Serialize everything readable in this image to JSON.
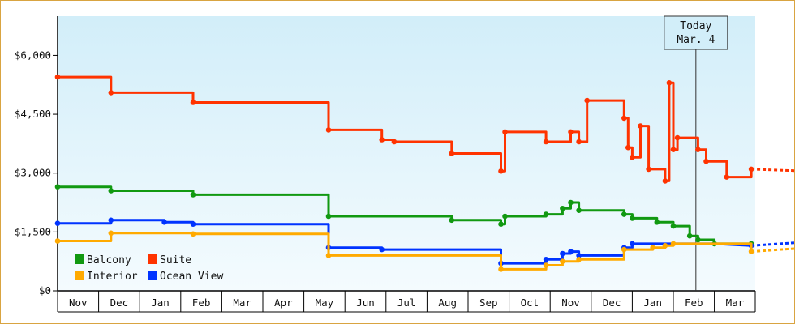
{
  "chart_data": {
    "type": "line",
    "title": "",
    "xlabel": "",
    "ylabel": "",
    "months": [
      "Nov",
      "Dec",
      "Jan",
      "Feb",
      "Mar",
      "Apr",
      "May",
      "Jun",
      "Jul",
      "Aug",
      "Sep",
      "Oct",
      "Nov",
      "Dec",
      "Jan",
      "Feb",
      "Mar"
    ],
    "ylim": [
      0,
      7000
    ],
    "yticks": [
      {
        "value": 0,
        "label": "$0"
      },
      {
        "value": 1500,
        "label": "$1,500"
      },
      {
        "value": 3000,
        "label": "$3,000"
      },
      {
        "value": 4500,
        "label": "$4,500"
      },
      {
        "value": 6000,
        "label": "$6,000"
      }
    ],
    "today": {
      "line1": "Today",
      "line2": "Mar. 4",
      "x": 15.55
    },
    "x_unit_note": "x values are month-axis positions (0 = start of Nov, 1 = start of Dec, ...)",
    "series": [
      {
        "name": "Suite",
        "color": "#ff3300",
        "points": [
          [
            0,
            5450
          ],
          [
            1.3,
            5450
          ],
          [
            1.3,
            5050
          ],
          [
            3.3,
            5050
          ],
          [
            3.3,
            4800
          ],
          [
            6.6,
            4800
          ],
          [
            6.6,
            4100
          ],
          [
            6.8,
            4100
          ],
          [
            7.9,
            4100
          ],
          [
            7.9,
            3850
          ],
          [
            8.2,
            3850
          ],
          [
            8.2,
            3800
          ],
          [
            9.6,
            3800
          ],
          [
            9.6,
            3500
          ],
          [
            10.8,
            3500
          ],
          [
            10.8,
            3050
          ],
          [
            10.9,
            3050
          ],
          [
            10.9,
            4050
          ],
          [
            11.9,
            4050
          ],
          [
            11.9,
            3800
          ],
          [
            12.5,
            3800
          ],
          [
            12.5,
            4050
          ],
          [
            12.7,
            4050
          ],
          [
            12.7,
            3800
          ],
          [
            12.9,
            3800
          ],
          [
            12.9,
            4850
          ],
          [
            13.8,
            4850
          ],
          [
            13.8,
            4400
          ],
          [
            13.9,
            4400
          ],
          [
            13.9,
            3650
          ],
          [
            14.0,
            3650
          ],
          [
            14.0,
            3400
          ],
          [
            14.2,
            3400
          ],
          [
            14.2,
            4200
          ],
          [
            14.4,
            4200
          ],
          [
            14.4,
            3100
          ],
          [
            14.8,
            3100
          ],
          [
            14.8,
            2800
          ],
          [
            14.9,
            2800
          ],
          [
            14.9,
            5300
          ],
          [
            15.0,
            5300
          ],
          [
            15.0,
            3600
          ],
          [
            15.1,
            3600
          ],
          [
            15.1,
            3900
          ],
          [
            15.6,
            3900
          ],
          [
            15.6,
            3600
          ],
          [
            15.8,
            3600
          ],
          [
            15.8,
            3300
          ],
          [
            16.3,
            3300
          ],
          [
            16.3,
            2900
          ],
          [
            16.9,
            2900
          ],
          [
            16.9,
            3100
          ]
        ],
        "forecast": [
          [
            16.9,
            3100
          ],
          [
            18.3,
            3050
          ]
        ]
      },
      {
        "name": "Balcony",
        "color": "#119911",
        "points": [
          [
            0,
            2650
          ],
          [
            1.3,
            2650
          ],
          [
            1.3,
            2550
          ],
          [
            3.3,
            2550
          ],
          [
            3.3,
            2450
          ],
          [
            6.6,
            2450
          ],
          [
            6.6,
            1900
          ],
          [
            6.8,
            1900
          ],
          [
            9.6,
            1900
          ],
          [
            9.6,
            1800
          ],
          [
            10.8,
            1800
          ],
          [
            10.8,
            1700
          ],
          [
            10.9,
            1700
          ],
          [
            10.9,
            1900
          ],
          [
            11.9,
            1900
          ],
          [
            11.9,
            1950
          ],
          [
            12.3,
            1950
          ],
          [
            12.3,
            2100
          ],
          [
            12.5,
            2100
          ],
          [
            12.5,
            2250
          ],
          [
            12.7,
            2250
          ],
          [
            12.7,
            2050
          ],
          [
            13.8,
            2050
          ],
          [
            13.8,
            1950
          ],
          [
            14.0,
            1950
          ],
          [
            14.0,
            1850
          ],
          [
            14.6,
            1850
          ],
          [
            14.6,
            1750
          ],
          [
            15.0,
            1750
          ],
          [
            15.0,
            1650
          ],
          [
            15.4,
            1650
          ],
          [
            15.4,
            1400
          ],
          [
            15.6,
            1400
          ],
          [
            15.6,
            1300
          ],
          [
            16.0,
            1300
          ],
          [
            16.0,
            1200
          ],
          [
            16.9,
            1200
          ]
        ],
        "forecast": []
      },
      {
        "name": "Ocean View",
        "color": "#0033ff",
        "points": [
          [
            0,
            1720
          ],
          [
            1.3,
            1720
          ],
          [
            1.3,
            1800
          ],
          [
            2.6,
            1800
          ],
          [
            2.6,
            1750
          ],
          [
            3.3,
            1750
          ],
          [
            3.3,
            1700
          ],
          [
            6.6,
            1700
          ],
          [
            6.6,
            1100
          ],
          [
            6.8,
            1100
          ],
          [
            7.9,
            1100
          ],
          [
            7.9,
            1050
          ],
          [
            9.6,
            1050
          ],
          [
            10.8,
            1050
          ],
          [
            10.8,
            700
          ],
          [
            11.9,
            700
          ],
          [
            11.9,
            800
          ],
          [
            12.3,
            800
          ],
          [
            12.3,
            950
          ],
          [
            12.5,
            950
          ],
          [
            12.5,
            1000
          ],
          [
            12.7,
            1000
          ],
          [
            12.7,
            900
          ],
          [
            13.8,
            900
          ],
          [
            13.8,
            1100
          ],
          [
            14.0,
            1100
          ],
          [
            14.0,
            1200
          ],
          [
            16.0,
            1200
          ],
          [
            16.9,
            1150
          ]
        ],
        "forecast": [
          [
            16.9,
            1150
          ],
          [
            18.3,
            1250
          ]
        ]
      },
      {
        "name": "Interior",
        "color": "#ffaa00",
        "points": [
          [
            0,
            1270
          ],
          [
            1.3,
            1270
          ],
          [
            1.3,
            1470
          ],
          [
            3.3,
            1470
          ],
          [
            3.3,
            1450
          ],
          [
            6.6,
            1450
          ],
          [
            6.6,
            900
          ],
          [
            6.8,
            900
          ],
          [
            9.6,
            900
          ],
          [
            10.8,
            900
          ],
          [
            10.8,
            550
          ],
          [
            11.9,
            550
          ],
          [
            11.9,
            650
          ],
          [
            12.3,
            650
          ],
          [
            12.3,
            750
          ],
          [
            12.7,
            750
          ],
          [
            12.7,
            800
          ],
          [
            13.8,
            800
          ],
          [
            13.8,
            1050
          ],
          [
            14.5,
            1050
          ],
          [
            14.5,
            1100
          ],
          [
            14.8,
            1100
          ],
          [
            14.8,
            1150
          ],
          [
            15.0,
            1150
          ],
          [
            15.0,
            1200
          ],
          [
            16.9,
            1200
          ],
          [
            16.9,
            1000
          ]
        ],
        "forecast": [
          [
            16.9,
            1000
          ],
          [
            18.3,
            1100
          ]
        ]
      }
    ],
    "legend": [
      {
        "name": "Balcony",
        "color": "#119911"
      },
      {
        "name": "Suite",
        "color": "#ff3300"
      },
      {
        "name": "Interior",
        "color": "#ffaa00"
      },
      {
        "name": "Ocean View",
        "color": "#0033ff"
      }
    ]
  }
}
